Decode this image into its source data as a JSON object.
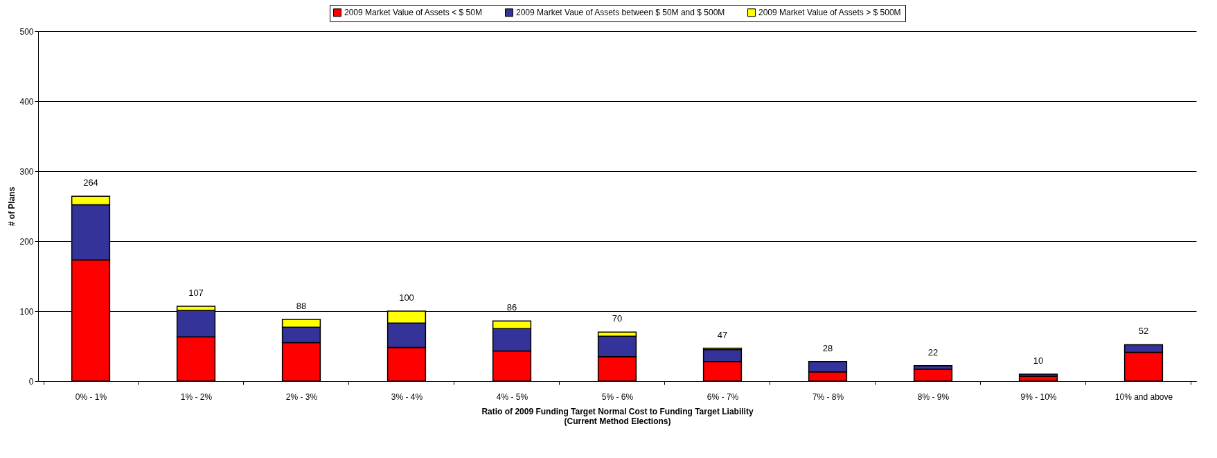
{
  "chart_data": {
    "type": "bar",
    "stacked": true,
    "xlabel": "Ratio of 2009 Funding Target Normal Cost to Funding Target Liability\n(Current Method Elections)",
    "ylabel": "# of Plans",
    "categories": [
      "0% - 1%",
      "1% - 2%",
      "2% - 3%",
      "3% - 4%",
      "4% - 5%",
      "5% - 6%",
      "6% - 7%",
      "7% - 8%",
      "8% - 9%",
      "9% - 10%",
      "10% and above"
    ],
    "series": [
      {
        "name": "2009 Market Value of Assets < $ 50M",
        "color": "#ff0000",
        "values": [
          173,
          63,
          55,
          48,
          43,
          35,
          28,
          13,
          17,
          7,
          41
        ]
      },
      {
        "name": "2009 Market Vaue of Assets between $ 50M and $ 500M",
        "color": "#333399",
        "values": [
          79,
          38,
          22,
          35,
          32,
          29,
          17,
          15,
          5,
          3,
          11
        ]
      },
      {
        "name": "2009 Market Value of Assets > $ 500M",
        "color": "#ffff00",
        "values": [
          12,
          6,
          11,
          17,
          11,
          6,
          2,
          null,
          null,
          null,
          null
        ]
      }
    ],
    "totals": [
      "264",
      "107",
      "88",
      "100",
      "86",
      "70",
      "47",
      "28",
      "22",
      "10",
      "52"
    ],
    "ylim": [
      0,
      500
    ],
    "yticks": [
      0,
      100,
      200,
      300,
      400,
      500
    ],
    "grid": "y",
    "legend": "top"
  }
}
